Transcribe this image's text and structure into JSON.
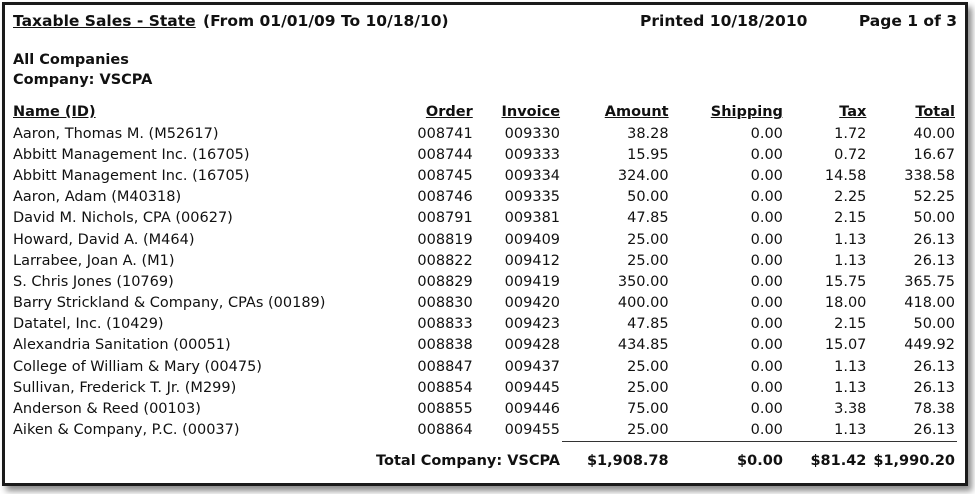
{
  "report": {
    "title": "Taxable Sales - State",
    "range": "(From 01/01/09 To 10/18/10)",
    "printed_label": "Printed",
    "printed_date": "10/18/2010",
    "page": "Page 1 of 3",
    "scope": "All Companies",
    "company": "Company: VSCPA"
  },
  "columns": {
    "name": "Name (ID)",
    "order": "Order",
    "invoice": "Invoice",
    "amount": "Amount",
    "shipping": "Shipping",
    "tax": "Tax",
    "total": "Total"
  },
  "rows": [
    {
      "name": "Aaron, Thomas M. (M52617)",
      "order": "008741",
      "invoice": "009330",
      "amount": "38.28",
      "shipping": "0.00",
      "tax": "1.72",
      "total": "40.00"
    },
    {
      "name": "Abbitt Management Inc. (16705)",
      "order": "008744",
      "invoice": "009333",
      "amount": "15.95",
      "shipping": "0.00",
      "tax": "0.72",
      "total": "16.67"
    },
    {
      "name": "Abbitt Management Inc. (16705)",
      "order": "008745",
      "invoice": "009334",
      "amount": "324.00",
      "shipping": "0.00",
      "tax": "14.58",
      "total": "338.58"
    },
    {
      "name": "Aaron, Adam (M40318)",
      "order": "008746",
      "invoice": "009335",
      "amount": "50.00",
      "shipping": "0.00",
      "tax": "2.25",
      "total": "52.25"
    },
    {
      "name": "David M. Nichols, CPA (00627)",
      "order": "008791",
      "invoice": "009381",
      "amount": "47.85",
      "shipping": "0.00",
      "tax": "2.15",
      "total": "50.00"
    },
    {
      "name": "Howard, David A. (M464)",
      "order": "008819",
      "invoice": "009409",
      "amount": "25.00",
      "shipping": "0.00",
      "tax": "1.13",
      "total": "26.13"
    },
    {
      "name": "Larrabee, Joan A. (M1)",
      "order": "008822",
      "invoice": "009412",
      "amount": "25.00",
      "shipping": "0.00",
      "tax": "1.13",
      "total": "26.13"
    },
    {
      "name": "S. Chris Jones (10769)",
      "order": "008829",
      "invoice": "009419",
      "amount": "350.00",
      "shipping": "0.00",
      "tax": "15.75",
      "total": "365.75"
    },
    {
      "name": "Barry Strickland & Company, CPAs (00189)",
      "order": "008830",
      "invoice": "009420",
      "amount": "400.00",
      "shipping": "0.00",
      "tax": "18.00",
      "total": "418.00"
    },
    {
      "name": "Datatel, Inc. (10429)",
      "order": "008833",
      "invoice": "009423",
      "amount": "47.85",
      "shipping": "0.00",
      "tax": "2.15",
      "total": "50.00"
    },
    {
      "name": "Alexandria Sanitation (00051)",
      "order": "008838",
      "invoice": "009428",
      "amount": "434.85",
      "shipping": "0.00",
      "tax": "15.07",
      "total": "449.92"
    },
    {
      "name": "College of William & Mary (00475)",
      "order": "008847",
      "invoice": "009437",
      "amount": "25.00",
      "shipping": "0.00",
      "tax": "1.13",
      "total": "26.13"
    },
    {
      "name": "Sullivan, Frederick T. Jr. (M299)",
      "order": "008854",
      "invoice": "009445",
      "amount": "25.00",
      "shipping": "0.00",
      "tax": "1.13",
      "total": "26.13"
    },
    {
      "name": "Anderson & Reed (00103)",
      "order": "008855",
      "invoice": "009446",
      "amount": "75.00",
      "shipping": "0.00",
      "tax": "3.38",
      "total": "78.38"
    },
    {
      "name": "Aiken & Company, P.C. (00037)",
      "order": "008864",
      "invoice": "009455",
      "amount": "25.00",
      "shipping": "0.00",
      "tax": "1.13",
      "total": "26.13"
    }
  ],
  "totals": {
    "label": "Total Company: VSCPA",
    "amount": "$1,908.78",
    "shipping": "$0.00",
    "tax": "$81.42",
    "total": "$1,990.20"
  }
}
